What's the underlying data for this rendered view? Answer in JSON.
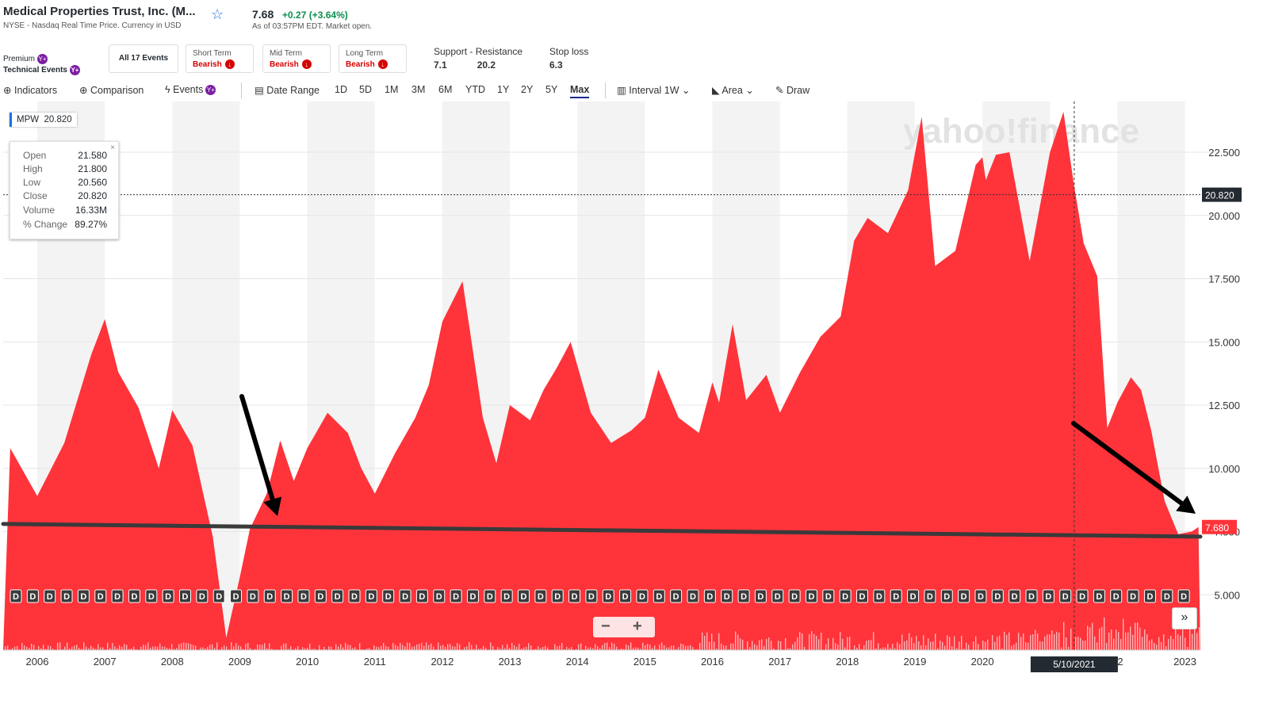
{
  "header": {
    "company": "Medical Properties Trust, Inc. (M...",
    "exchange": "NYSE - Nasdaq Real Time Price. Currency in USD",
    "price": "7.68",
    "change": "+0.27",
    "change_pct": "(+3.64%)",
    "as_of": "As of 03:57PM EDT. Market open."
  },
  "premium": {
    "label": "Premium",
    "events_label": "Technical Events",
    "badge": "Y+"
  },
  "events": {
    "all_label": "All 17 Events",
    "short": {
      "term": "Short Term",
      "signal": "Bearish"
    },
    "mid": {
      "term": "Mid Term",
      "signal": "Bearish"
    },
    "long": {
      "term": "Long Term",
      "signal": "Bearish"
    }
  },
  "levels": {
    "support_label": "Support",
    "dash": "-",
    "resistance_label": "Resistance",
    "stop_label": "Stop loss",
    "support": "7.1",
    "resistance": "20.2",
    "stop": "6.3"
  },
  "toolbar": {
    "indicators": "Indicators",
    "comparison": "Comparison",
    "events": "Events",
    "date_range": "Date Range",
    "ranges": [
      "1D",
      "5D",
      "1M",
      "3M",
      "6M",
      "YTD",
      "1Y",
      "2Y",
      "5Y",
      "Max"
    ],
    "selected_range": "Max",
    "interval": "Interval",
    "interval_value": "1W",
    "chart_type": "Area",
    "draw": "Draw"
  },
  "tooltip": {
    "symbol": "MPW",
    "symbol_value": "20.820",
    "open_label": "Open",
    "open": "21.580",
    "high_label": "High",
    "high": "21.800",
    "low_label": "Low",
    "low": "20.560",
    "close_label": "Close",
    "close": "20.820",
    "volume_label": "Volume",
    "volume": "16.33M",
    "change_label": "% Change",
    "change": "89.27%",
    "close_icon": "×"
  },
  "watermark": "yahoo!finance",
  "crosshair_date": "5/10/2021",
  "crosshair_price_label": "20.820",
  "last_price_label": "7.680",
  "dividend_marker": "D",
  "zoom_minus": "−",
  "zoom_plus": "+",
  "forward_label": "»",
  "colors": {
    "area": "#ff333a",
    "accent": "#1a73e8",
    "bearish": "#d60000",
    "positive": "#0a8f4c"
  },
  "chart_data": {
    "type": "area",
    "x_labels": [
      "2006",
      "2007",
      "2008",
      "2009",
      "2010",
      "2011",
      "2012",
      "2013",
      "2014",
      "2015",
      "2016",
      "2017",
      "2018",
      "2019",
      "2020",
      "2021",
      "22",
      "2023"
    ],
    "y_ticks": [
      5.0,
      7.5,
      10.0,
      12.5,
      15.0,
      17.5,
      20.0,
      22.5
    ],
    "y_tick_labels": [
      "5.000",
      "7.500",
      "10.000",
      "12.500",
      "15.000",
      "17.500",
      "20.000",
      "22.500"
    ],
    "ylim": [
      2.0,
      24.0
    ],
    "x": [
      2005.6,
      2006.0,
      2006.4,
      2006.8,
      2007.0,
      2007.2,
      2007.5,
      2007.8,
      2008.0,
      2008.3,
      2008.6,
      2008.8,
      2009.0,
      2009.15,
      2009.4,
      2009.6,
      2009.8,
      2010.0,
      2010.3,
      2010.6,
      2010.8,
      2011.0,
      2011.3,
      2011.6,
      2011.8,
      2012.0,
      2012.3,
      2012.6,
      2012.8,
      2013.0,
      2013.3,
      2013.5,
      2013.7,
      2013.9,
      2014.2,
      2014.5,
      2014.8,
      2015.0,
      2015.2,
      2015.5,
      2015.8,
      2016.0,
      2016.1,
      2016.3,
      2016.5,
      2016.8,
      2017.0,
      2017.3,
      2017.6,
      2017.9,
      2018.1,
      2018.3,
      2018.6,
      2018.9,
      2019.1,
      2019.3,
      2019.6,
      2019.9,
      2020.0,
      2020.05,
      2020.2,
      2020.4,
      2020.7,
      2021.0,
      2021.2,
      2021.35,
      2021.5,
      2021.7,
      2021.85,
      2022.0,
      2022.2,
      2022.35,
      2022.5,
      2022.7,
      2022.9,
      2023.1,
      2023.2
    ],
    "y": [
      10.8,
      8.9,
      11.0,
      14.5,
      15.9,
      13.8,
      12.4,
      10.0,
      12.3,
      10.9,
      7.3,
      3.3,
      5.7,
      7.6,
      9.0,
      11.1,
      9.5,
      10.8,
      12.2,
      11.4,
      10.0,
      9.0,
      10.6,
      12.0,
      13.3,
      15.8,
      17.4,
      12.0,
      10.2,
      12.5,
      11.9,
      13.1,
      14.0,
      15.0,
      12.2,
      11.0,
      11.5,
      12.0,
      13.9,
      12.0,
      11.4,
      13.4,
      12.6,
      15.7,
      12.7,
      13.7,
      12.2,
      13.8,
      15.2,
      16.0,
      19.0,
      19.9,
      19.3,
      21.0,
      23.9,
      18.0,
      18.6,
      22.0,
      22.3,
      21.4,
      22.4,
      22.5,
      18.2,
      22.5,
      24.1,
      21.3,
      18.9,
      17.6,
      11.6,
      12.6,
      13.6,
      13.1,
      11.5,
      8.7,
      7.4,
      7.5,
      7.68
    ],
    "annotations": {
      "current": 7.68,
      "crosshair": 20.82,
      "support_line": [
        7.8,
        7.3
      ]
    }
  }
}
